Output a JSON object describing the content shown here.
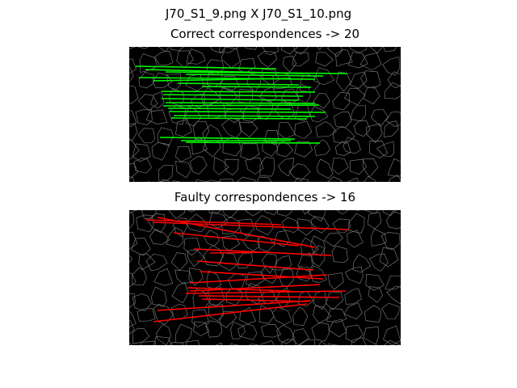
{
  "figure": {
    "title": "J70_S1_9.png  X  J70_S1_10.png"
  },
  "top_panel": {
    "title": "Correct correspondences -> 20",
    "line_color": "#00ff00",
    "match_count": 20
  },
  "bottom_panel": {
    "title": "Faulty correspondences -> 16",
    "line_color": "#ff0000",
    "match_count": 16
  },
  "background": {
    "panel_color": "#000000",
    "texture_color": "#888888"
  }
}
